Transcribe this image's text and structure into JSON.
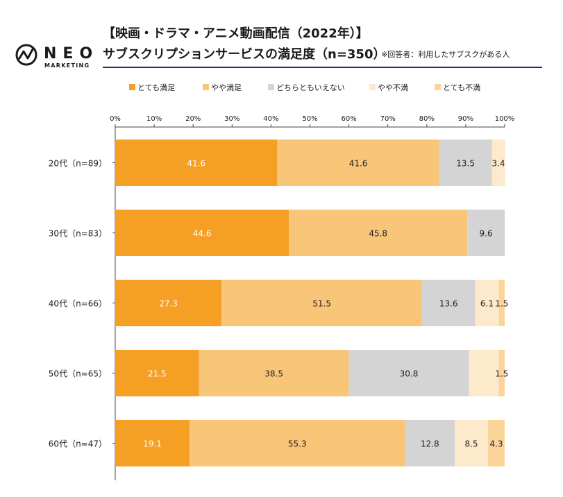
{
  "header": {
    "brand_name": "NEO",
    "brand_sub": "MARKETING",
    "title_line1": "【映画・ドラマ・アニメ動画配信（2022年）】",
    "title_line2": "サブスクリプションサービスの満足度（n=350）",
    "note": "※回答者：利用したサブスクがある人"
  },
  "colors": {
    "header_rule": "#1f2f6b",
    "axis": "#444444",
    "label_light": "#ffffff",
    "label_dark": "#222222"
  },
  "chart_data": {
    "type": "bar",
    "orientation": "horizontal",
    "stacked": true,
    "title": "サブスクリプションサービスの満足度（n=350）",
    "xlim": [
      0,
      100
    ],
    "x_ticks": [
      "0%",
      "10%",
      "20%",
      "30%",
      "40%",
      "50%",
      "60%",
      "70%",
      "80%",
      "90%",
      "100%"
    ],
    "legend_position": "top",
    "categories": [
      "20代（n=89）",
      "30代（n=83）",
      "40代（n=66）",
      "50代（n=65）",
      "60代（n=47）"
    ],
    "series": [
      {
        "name": "とても満足",
        "color": "#f5a025",
        "values": [
          41.6,
          44.6,
          27.3,
          21.5,
          19.1
        ],
        "labels": [
          "41.6",
          "44.6",
          "27.3",
          "21.5",
          "19.1"
        ]
      },
      {
        "name": "やや満足",
        "color": "#f9c578",
        "values": [
          41.6,
          45.8,
          51.5,
          38.5,
          55.3
        ],
        "labels": [
          "41.6",
          "45.8",
          "51.5",
          "38.5",
          "55.3"
        ]
      },
      {
        "name": "どちらともいえない",
        "color": "#d4d4d4",
        "values": [
          13.5,
          9.6,
          13.6,
          30.8,
          12.8
        ],
        "labels": [
          "13.5",
          "9.6",
          "13.6",
          "30.8",
          "12.8"
        ]
      },
      {
        "name": "やや不満",
        "color": "#fde9cc",
        "values": [
          3.4,
          0,
          6.1,
          7.7,
          8.5
        ],
        "labels": [
          "3.4",
          "",
          "6.1",
          "",
          "8.5"
        ]
      },
      {
        "name": "とても不満",
        "color": "#fbd49a",
        "values": [
          0,
          0,
          1.5,
          1.5,
          4.3
        ],
        "labels": [
          "",
          "",
          "1.5",
          "1.5",
          "4.3"
        ]
      }
    ]
  }
}
